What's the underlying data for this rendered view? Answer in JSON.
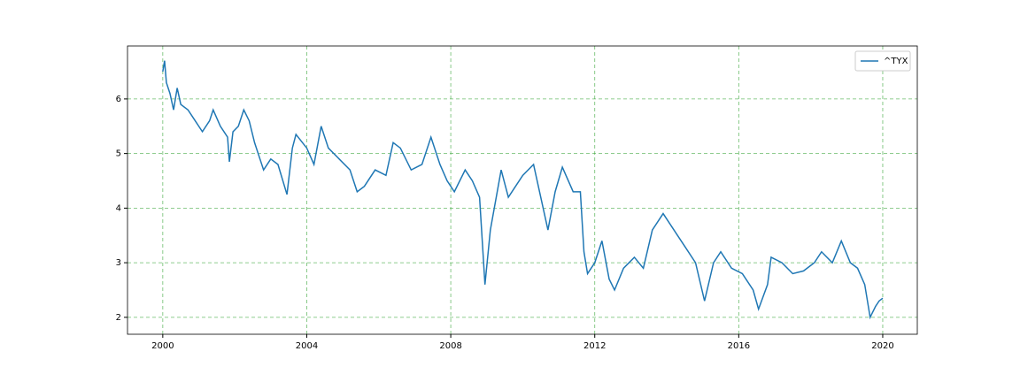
{
  "chart_data": {
    "type": "line",
    "x": [
      2000.0,
      2000.05,
      2000.1,
      2000.2,
      2000.3,
      2000.4,
      2000.5,
      2000.7,
      2000.9,
      2001.0,
      2001.1,
      2001.3,
      2001.4,
      2001.6,
      2001.8,
      2001.85,
      2001.95,
      2002.1,
      2002.25,
      2002.4,
      2002.55,
      2002.7,
      2002.8,
      2003.0,
      2003.2,
      2003.45,
      2003.6,
      2003.7,
      2004.0,
      2004.2,
      2004.4,
      2004.6,
      2004.9,
      2005.2,
      2005.4,
      2005.6,
      2005.9,
      2006.2,
      2006.4,
      2006.6,
      2006.9,
      2007.2,
      2007.45,
      2007.7,
      2007.9,
      2008.1,
      2008.4,
      2008.6,
      2008.8,
      2008.95,
      2009.1,
      2009.4,
      2009.6,
      2009.8,
      2010.0,
      2010.3,
      2010.6,
      2010.7,
      2010.9,
      2011.1,
      2011.4,
      2011.6,
      2011.7,
      2011.8,
      2012.0,
      2012.2,
      2012.4,
      2012.55,
      2012.8,
      2013.1,
      2013.35,
      2013.6,
      2013.9,
      2014.2,
      2014.5,
      2014.8,
      2015.05,
      2015.3,
      2015.5,
      2015.8,
      2016.1,
      2016.4,
      2016.55,
      2016.8,
      2016.9,
      2017.2,
      2017.5,
      2017.8,
      2018.1,
      2018.3,
      2018.6,
      2018.85,
      2019.1,
      2019.3,
      2019.5,
      2019.65,
      2019.8,
      2019.9,
      2020.0
    ],
    "series": [
      {
        "name": "^TYX",
        "color": "#1f77b4",
        "values": [
          6.5,
          6.7,
          6.3,
          6.1,
          5.8,
          6.2,
          5.9,
          5.8,
          5.6,
          5.5,
          5.4,
          5.6,
          5.8,
          5.5,
          5.3,
          4.85,
          5.4,
          5.5,
          5.8,
          5.6,
          5.2,
          4.9,
          4.7,
          4.9,
          4.8,
          4.25,
          5.1,
          5.35,
          5.1,
          4.8,
          5.5,
          5.1,
          4.9,
          4.7,
          4.3,
          4.4,
          4.7,
          4.6,
          5.2,
          5.1,
          4.7,
          4.8,
          5.3,
          4.8,
          4.5,
          4.3,
          4.7,
          4.5,
          4.2,
          2.6,
          3.6,
          4.7,
          4.2,
          4.4,
          4.6,
          4.8,
          3.9,
          3.6,
          4.3,
          4.75,
          4.3,
          4.3,
          3.2,
          2.8,
          3.0,
          3.4,
          2.7,
          2.5,
          2.9,
          3.1,
          2.9,
          3.6,
          3.9,
          3.6,
          3.3,
          3.0,
          2.3,
          3.0,
          3.2,
          2.9,
          2.8,
          2.5,
          2.15,
          2.6,
          3.1,
          3.0,
          2.8,
          2.85,
          3.0,
          3.2,
          3.0,
          3.4,
          3.0,
          2.9,
          2.6,
          2.0,
          2.2,
          2.3,
          2.35
        ]
      }
    ],
    "xlim": [
      1999.02,
      2020.96
    ],
    "xticks": [
      2000,
      2004,
      2008,
      2012,
      2016,
      2020
    ],
    "ylim": [
      1.69,
      6.97
    ],
    "yticks": [
      2,
      3,
      4,
      5,
      6
    ],
    "grid": true,
    "grid_color": "#2ca02c",
    "legend": "upper right"
  }
}
